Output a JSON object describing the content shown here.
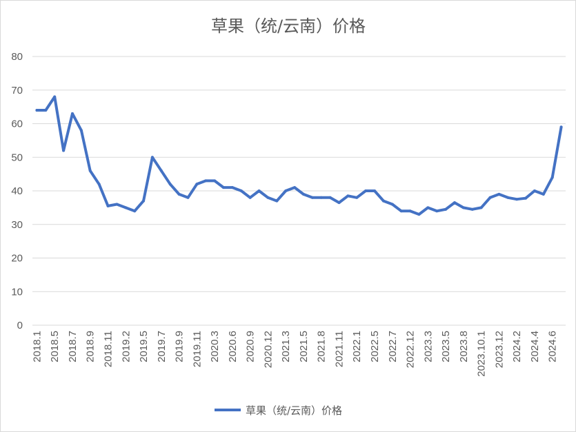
{
  "chart_data": {
    "type": "line",
    "title": "草果（统/云南）价格",
    "xlabel": "",
    "ylabel": "",
    "ylim": [
      0,
      80
    ],
    "yticks": [
      0,
      10,
      20,
      30,
      40,
      50,
      60,
      70,
      80
    ],
    "grid": true,
    "legend_position": "bottom",
    "x_tick_labels": [
      "2018.1",
      "2018.5",
      "2018.7",
      "2018.9",
      "2018.11",
      "2019.2",
      "2019.5",
      "2019.7",
      "2019.9",
      "2019.11",
      "2020.3",
      "2020.6",
      "2020.9",
      "2020.12",
      "2021.3",
      "2021.5",
      "2021.8",
      "2021.11",
      "2022.1",
      "2022.5",
      "2022.7",
      "2022.12",
      "2023.3",
      "2023.5",
      "2023.8",
      "2023.10.1",
      "2023.12",
      "2024.2",
      "2024.4",
      "2024.6"
    ],
    "x_tick_point_index": [
      0,
      2,
      4,
      6,
      8,
      10,
      12,
      14,
      16,
      18,
      20,
      22,
      24,
      26,
      28,
      30,
      32,
      34,
      36,
      38,
      40,
      42,
      44,
      46,
      48,
      50,
      52,
      54,
      56,
      58
    ],
    "series": [
      {
        "name": "草果（统/云南）价格",
        "color": "#4472C4",
        "values": [
          64,
          64,
          68,
          52,
          63,
          58,
          46,
          42,
          35.5,
          36,
          35,
          34,
          37,
          50,
          46,
          42,
          39,
          38,
          42,
          43,
          43,
          41,
          41,
          40,
          38,
          40,
          38,
          37,
          40,
          41,
          39,
          38,
          38,
          38,
          36.5,
          38.5,
          38,
          40,
          40,
          37,
          36,
          34,
          34,
          33,
          35,
          34,
          34.5,
          36.5,
          35,
          34.5,
          35,
          38,
          39,
          38,
          37.5,
          37.8,
          40,
          39,
          44,
          59
        ]
      }
    ]
  }
}
